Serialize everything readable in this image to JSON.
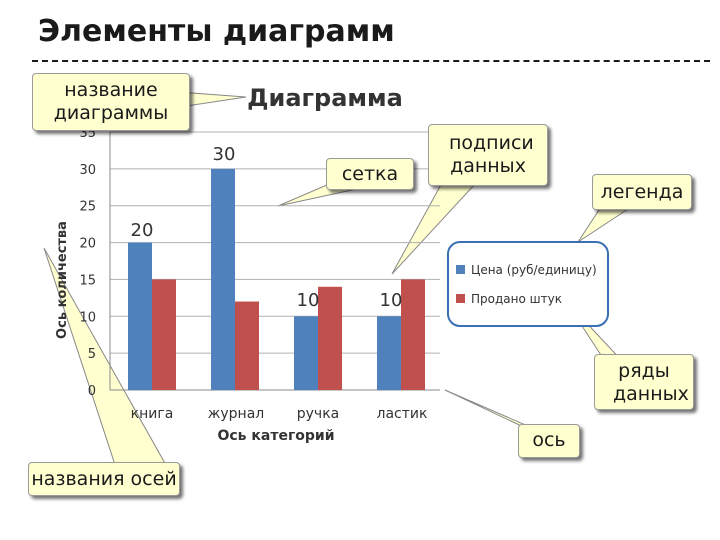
{
  "slide": {
    "title": "Элементы диаграмм"
  },
  "callouts": {
    "chart_title": "название диаграммы",
    "gridlines": "сетка",
    "data_labels": "подписи данных",
    "legend": "легенда",
    "series": "ряды данных",
    "axis": "ось",
    "axis_titles": "названия осей"
  },
  "colors": {
    "series_price": "#4f81bd",
    "series_sold": "#c0504d",
    "callout_fill": "#ffffd0",
    "gridline": "#b0b0b0"
  },
  "chart_data": {
    "type": "bar",
    "title": "Диаграмма",
    "xlabel": "Ось категорий",
    "ylabel": "Ось количества",
    "categories": [
      "книга",
      "журнал",
      "ручка",
      "ластик"
    ],
    "series": [
      {
        "name": "Цена (руб/единицу)",
        "values": [
          20,
          30,
          10,
          10
        ],
        "color": "#4f81bd"
      },
      {
        "name": "Продано штук",
        "values": [
          15,
          12,
          14,
          15
        ],
        "color": "#c0504d"
      }
    ],
    "data_labels": [
      "20",
      "30",
      "10",
      "10"
    ],
    "ylim": [
      0,
      35
    ],
    "yticks": [
      0,
      5,
      10,
      15,
      20,
      25,
      30,
      35
    ],
    "grid": true,
    "legend_position": "right"
  }
}
